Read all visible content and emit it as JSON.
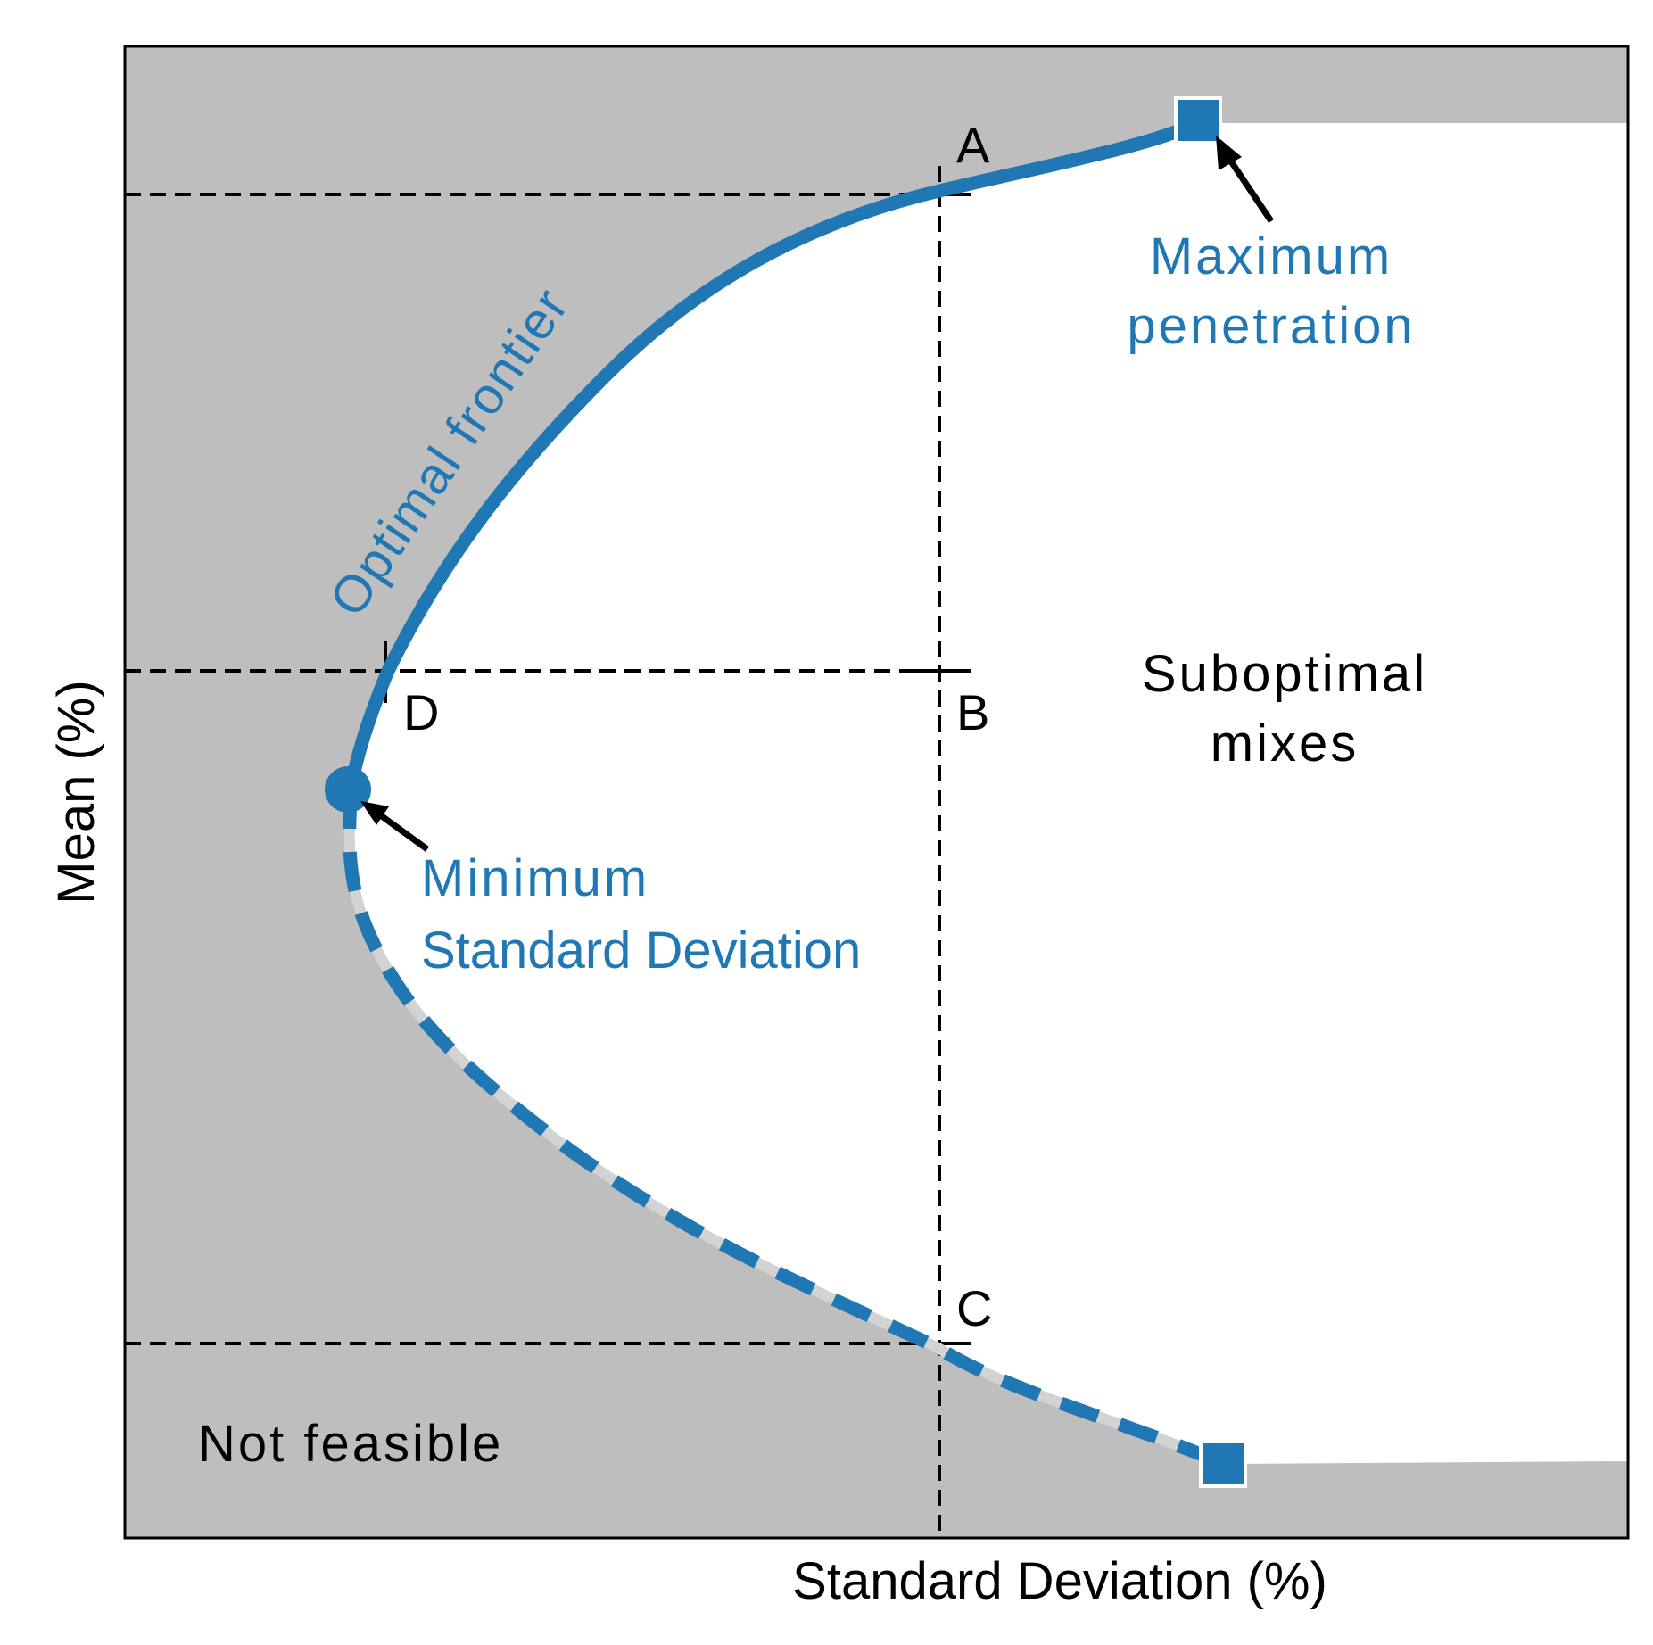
{
  "figure": {
    "x_axis_label": "Standard Deviation (%)",
    "y_axis_label": "Mean (%)",
    "points": {
      "A": "A",
      "B": "B",
      "C": "C",
      "D": "D"
    },
    "labels": {
      "optimal_frontier": "Optimal frontier",
      "max_penetration_line1": "Maximum",
      "max_penetration_line2": "penetration",
      "min_sd_line1": "Minimum",
      "min_sd_line2": "Standard Deviation",
      "suboptimal_line1": "Suboptimal",
      "suboptimal_line2": "mixes",
      "not_feasible": "Not feasible"
    },
    "colors": {
      "frontier": "#1f77b4",
      "infeasible_region": "#bebebe",
      "guides": "#000000",
      "text": "#000000"
    }
  }
}
